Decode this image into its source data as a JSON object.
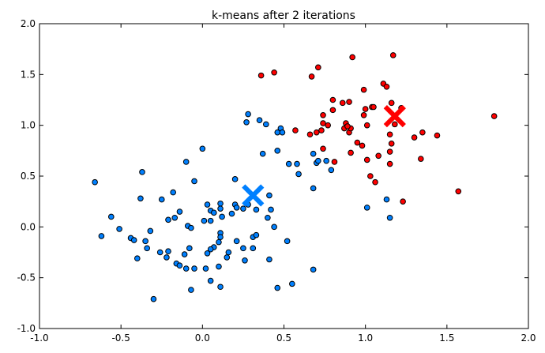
{
  "chart_data": {
    "type": "scatter",
    "title": "k-means after 2 iterations",
    "xlabel": "",
    "ylabel": "",
    "xlim": [
      -1.0,
      2.0
    ],
    "ylim": [
      -1.0,
      2.0
    ],
    "xticks": [
      "-1.0",
      "-0.5",
      "0.0",
      "0.5",
      "1.0",
      "1.5",
      "2.0"
    ],
    "yticks": [
      "-1.0",
      "-0.5",
      "0.0",
      "0.5",
      "1.0",
      "1.5",
      "2.0"
    ],
    "grid": false,
    "legend": "none",
    "series": [
      {
        "color": "#0080ff",
        "marker": "circle",
        "points": [
          [
            -0.66,
            0.44
          ],
          [
            -0.37,
            0.54
          ],
          [
            0.0,
            0.77
          ],
          [
            -0.1,
            0.64
          ],
          [
            -0.05,
            0.45
          ],
          [
            -0.38,
            0.28
          ],
          [
            -0.25,
            0.27
          ],
          [
            -0.18,
            0.34
          ],
          [
            -0.56,
            0.1
          ],
          [
            -0.51,
            -0.02
          ],
          [
            -0.62,
            -0.09
          ],
          [
            -0.44,
            -0.11
          ],
          [
            -0.42,
            -0.13
          ],
          [
            -0.32,
            -0.04
          ],
          [
            -0.35,
            -0.14
          ],
          [
            -0.34,
            -0.21
          ],
          [
            -0.4,
            -0.31
          ],
          [
            -0.26,
            -0.25
          ],
          [
            -0.21,
            -0.24
          ],
          [
            -0.22,
            -0.3
          ],
          [
            -0.16,
            -0.36
          ],
          [
            -0.14,
            -0.38
          ],
          [
            -0.1,
            -0.41
          ],
          [
            -0.05,
            -0.41
          ],
          [
            0.02,
            -0.41
          ],
          [
            -0.11,
            -0.27
          ],
          [
            -0.08,
            -0.21
          ],
          [
            -0.09,
            0.01
          ],
          [
            -0.07,
            -0.01
          ],
          [
            -0.14,
            0.15
          ],
          [
            -0.17,
            0.09
          ],
          [
            -0.21,
            0.07
          ],
          [
            0.01,
            0.06
          ],
          [
            0.05,
            0.06
          ],
          [
            0.03,
            0.22
          ],
          [
            0.05,
            0.16
          ],
          [
            0.07,
            0.14
          ],
          [
            0.11,
            0.23
          ],
          [
            0.11,
            0.18
          ],
          [
            0.12,
            0.1
          ],
          [
            0.18,
            0.13
          ],
          [
            0.2,
            0.22
          ],
          [
            0.21,
            0.19
          ],
          [
            0.25,
            0.18
          ],
          [
            0.2,
            0.47
          ],
          [
            0.28,
            0.22
          ],
          [
            0.33,
            0.17
          ],
          [
            0.41,
            0.31
          ],
          [
            0.42,
            0.17
          ],
          [
            0.4,
            0.09
          ],
          [
            0.44,
            0.0
          ],
          [
            0.52,
            -0.14
          ],
          [
            0.11,
            -0.06
          ],
          [
            0.11,
            -0.1
          ],
          [
            0.1,
            -0.15
          ],
          [
            0.07,
            -0.2
          ],
          [
            0.05,
            -0.22
          ],
          [
            0.03,
            -0.26
          ],
          [
            0.16,
            -0.25
          ],
          [
            0.15,
            -0.3
          ],
          [
            0.1,
            -0.39
          ],
          [
            0.21,
            -0.14
          ],
          [
            0.25,
            -0.21
          ],
          [
            0.26,
            -0.33
          ],
          [
            0.31,
            -0.21
          ],
          [
            0.31,
            -0.1
          ],
          [
            0.33,
            -0.08
          ],
          [
            0.41,
            -0.32
          ],
          [
            0.05,
            -0.53
          ],
          [
            0.11,
            -0.59
          ],
          [
            -0.07,
            -0.62
          ],
          [
            -0.3,
            -0.71
          ],
          [
            0.46,
            -0.6
          ],
          [
            0.55,
            -0.56
          ],
          [
            0.68,
            -0.42
          ],
          [
            0.28,
            1.11
          ],
          [
            0.27,
            1.03
          ],
          [
            0.35,
            1.05
          ],
          [
            0.39,
            1.01
          ],
          [
            0.48,
            0.97
          ],
          [
            0.46,
            0.93
          ],
          [
            0.49,
            0.93
          ],
          [
            0.37,
            0.72
          ],
          [
            0.46,
            0.75
          ],
          [
            0.53,
            0.62
          ],
          [
            0.58,
            0.62
          ],
          [
            0.59,
            0.52
          ],
          [
            0.68,
            0.72
          ],
          [
            0.7,
            0.63
          ],
          [
            0.71,
            0.65
          ],
          [
            0.76,
            0.65
          ],
          [
            0.79,
            0.56
          ],
          [
            0.68,
            0.38
          ],
          [
            1.13,
            0.27
          ],
          [
            1.01,
            0.19
          ],
          [
            1.15,
            0.09
          ]
        ],
        "centroid": [
          0.31,
          0.31
        ]
      },
      {
        "color": "#ff0000",
        "marker": "circle",
        "points": [
          [
            0.36,
            1.49
          ],
          [
            0.44,
            1.52
          ],
          [
            0.67,
            1.48
          ],
          [
            0.71,
            1.57
          ],
          [
            0.92,
            1.67
          ],
          [
            1.17,
            1.69
          ],
          [
            0.99,
            1.35
          ],
          [
            1.11,
            1.41
          ],
          [
            1.13,
            1.38
          ],
          [
            0.8,
            1.25
          ],
          [
            0.86,
            1.22
          ],
          [
            0.9,
            1.23
          ],
          [
            1.16,
            1.22
          ],
          [
            1.0,
            1.16
          ],
          [
            1.04,
            1.18
          ],
          [
            1.05,
            1.18
          ],
          [
            0.99,
            1.1
          ],
          [
            1.22,
            1.17
          ],
          [
            1.01,
            1.0
          ],
          [
            1.18,
            1.01
          ],
          [
            0.74,
            1.1
          ],
          [
            0.8,
            1.15
          ],
          [
            0.74,
            1.02
          ],
          [
            0.77,
            1.0
          ],
          [
            0.73,
            0.95
          ],
          [
            0.7,
            0.93
          ],
          [
            0.66,
            0.91
          ],
          [
            0.57,
            0.95
          ],
          [
            0.88,
            1.02
          ],
          [
            0.87,
            0.97
          ],
          [
            0.9,
            0.93
          ],
          [
            0.91,
            0.97
          ],
          [
            0.89,
            0.99
          ],
          [
            1.15,
            0.91
          ],
          [
            1.3,
            0.88
          ],
          [
            1.35,
            0.93
          ],
          [
            1.44,
            0.9
          ],
          [
            0.95,
            0.83
          ],
          [
            0.98,
            0.8
          ],
          [
            1.16,
            0.82
          ],
          [
            1.15,
            0.74
          ],
          [
            0.74,
            0.77
          ],
          [
            0.91,
            0.73
          ],
          [
            1.08,
            0.7
          ],
          [
            1.01,
            0.66
          ],
          [
            1.15,
            0.62
          ],
          [
            1.34,
            0.67
          ],
          [
            0.81,
            0.64
          ],
          [
            1.03,
            0.5
          ],
          [
            1.06,
            0.44
          ],
          [
            1.57,
            0.35
          ],
          [
            1.23,
            0.25
          ],
          [
            1.79,
            1.09
          ]
        ],
        "centroid": [
          1.18,
          1.09
        ]
      }
    ]
  }
}
